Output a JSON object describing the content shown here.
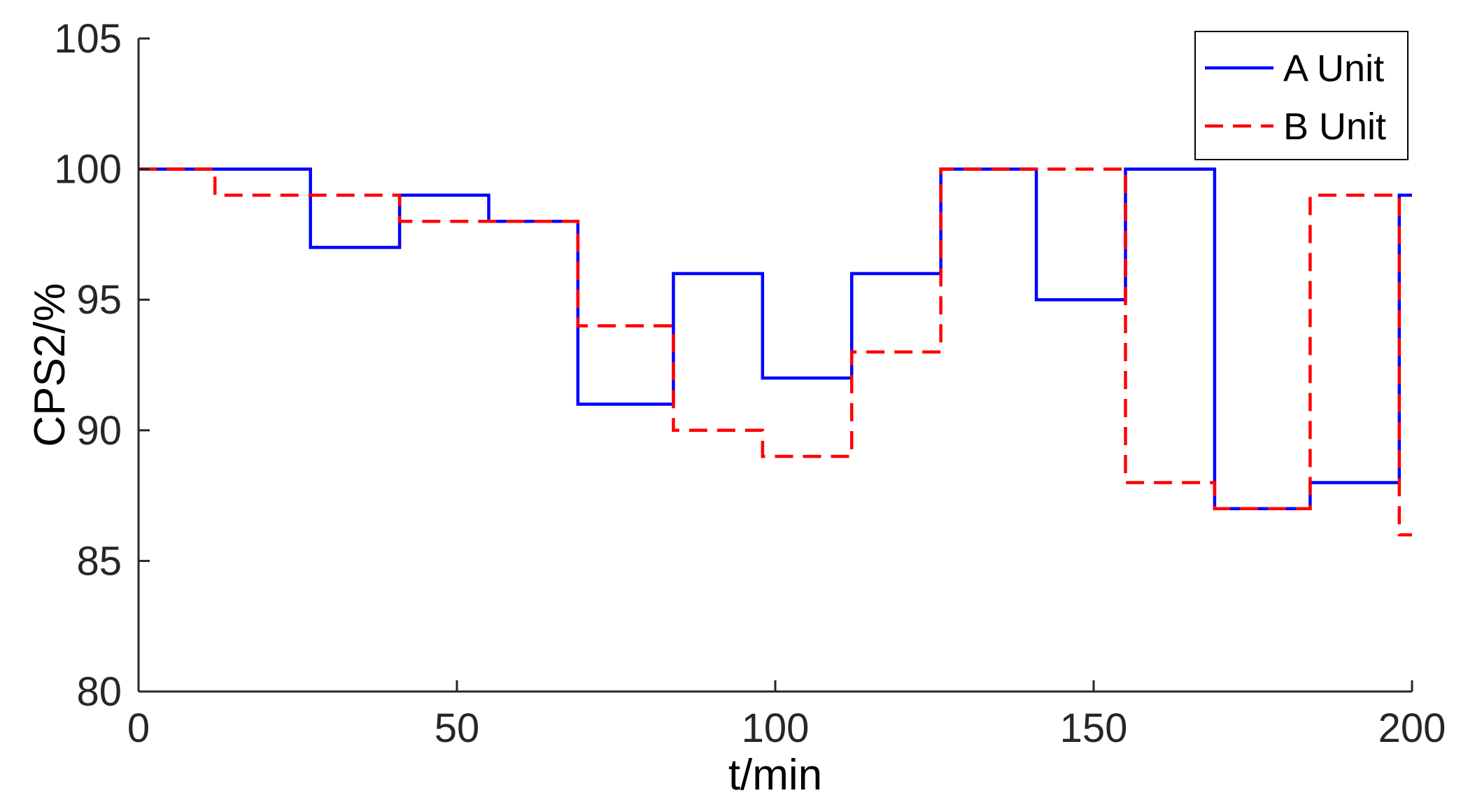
{
  "chart_data": {
    "type": "line",
    "xlabel": "t/min",
    "ylabel": "CPS2/%",
    "xlim": [
      0,
      200
    ],
    "ylim": [
      80,
      105
    ],
    "xticks": [
      0,
      50,
      100,
      150,
      200
    ],
    "yticks": [
      80,
      85,
      90,
      95,
      100,
      105
    ],
    "grid": false,
    "legend_position": "top-right",
    "series": [
      {
        "name": "A Unit",
        "color": "#0000ff",
        "style": "solid",
        "x": [
          0,
          27,
          41,
          55,
          69,
          84,
          98,
          112,
          126,
          141,
          155,
          169,
          184,
          198,
          200
        ],
        "values": [
          100,
          97,
          99,
          98,
          91,
          96,
          92,
          96,
          100,
          95,
          100,
          87,
          88,
          99,
          99
        ]
      },
      {
        "name": "B Unit",
        "color": "#ff0000",
        "style": "dashed",
        "x": [
          0,
          12,
          41,
          55,
          69,
          84,
          98,
          112,
          126,
          141,
          155,
          169,
          184,
          198,
          200
        ],
        "values": [
          100,
          99,
          98,
          98,
          94,
          90,
          89,
          93,
          100,
          100,
          88,
          87,
          99,
          86,
          86
        ]
      }
    ]
  }
}
